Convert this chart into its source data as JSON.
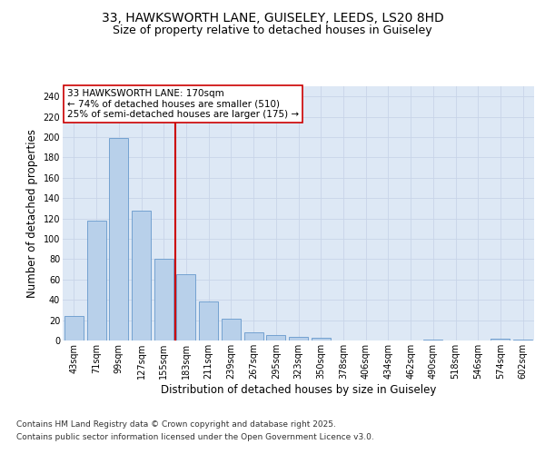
{
  "title_line1": "33, HAWKSWORTH LANE, GUISELEY, LEEDS, LS20 8HD",
  "title_line2": "Size of property relative to detached houses in Guiseley",
  "xlabel": "Distribution of detached houses by size in Guiseley",
  "ylabel": "Number of detached properties",
  "categories": [
    "43sqm",
    "71sqm",
    "99sqm",
    "127sqm",
    "155sqm",
    "183sqm",
    "211sqm",
    "239sqm",
    "267sqm",
    "295sqm",
    "323sqm",
    "350sqm",
    "378sqm",
    "406sqm",
    "434sqm",
    "462sqm",
    "490sqm",
    "518sqm",
    "546sqm",
    "574sqm",
    "602sqm"
  ],
  "values": [
    24,
    118,
    199,
    128,
    80,
    65,
    38,
    21,
    8,
    5,
    4,
    3,
    0,
    0,
    0,
    0,
    1,
    0,
    0,
    2,
    1
  ],
  "bar_color": "#b8d0ea",
  "bar_edge_color": "#6699cc",
  "reference_line_x": 4.5,
  "reference_line_color": "#cc0000",
  "annotation_text": "33 HAWKSWORTH LANE: 170sqm\n← 74% of detached houses are smaller (510)\n25% of semi-detached houses are larger (175) →",
  "annotation_box_color": "#ffffff",
  "annotation_box_edge_color": "#cc0000",
  "ylim": [
    0,
    250
  ],
  "yticks": [
    0,
    20,
    40,
    60,
    80,
    100,
    120,
    140,
    160,
    180,
    200,
    220,
    240
  ],
  "grid_color": "#c8d4e8",
  "background_color": "#dde8f5",
  "footer_line1": "Contains HM Land Registry data © Crown copyright and database right 2025.",
  "footer_line2": "Contains public sector information licensed under the Open Government Licence v3.0.",
  "title_fontsize": 10,
  "subtitle_fontsize": 9,
  "axis_label_fontsize": 8.5,
  "tick_fontsize": 7,
  "annotation_fontsize": 7.5,
  "footer_fontsize": 6.5
}
